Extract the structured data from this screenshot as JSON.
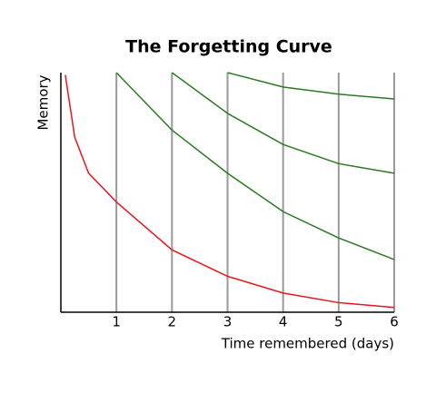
{
  "chart_data": {
    "type": "line",
    "title": "The Forgetting Curve",
    "x_label": "Time remembered (days)",
    "y_label": "Memory",
    "x": [
      0.08,
      0.25,
      0.5,
      1,
      2,
      3,
      4,
      5,
      6
    ],
    "series": [
      {
        "color": "#e8161b",
        "values": [
          99,
          73,
          58,
          46,
          26,
          15,
          8,
          4,
          2
        ]
      },
      {
        "color": "#2a7a22",
        "values": [
          null,
          null,
          null,
          100,
          76,
          58,
          42,
          31,
          22
        ]
      },
      {
        "color": "#2a7a22",
        "values": [
          null,
          null,
          null,
          null,
          100,
          83,
          70,
          62,
          58
        ]
      },
      {
        "color": "#2a7a22",
        "values": [
          null,
          null,
          null,
          null,
          null,
          100,
          94,
          91,
          89
        ]
      }
    ],
    "xlim": [
      0,
      6
    ],
    "ylim": [
      0,
      100
    ],
    "xticks": [
      1,
      2,
      3,
      4,
      5,
      6
    ],
    "grid": true
  }
}
